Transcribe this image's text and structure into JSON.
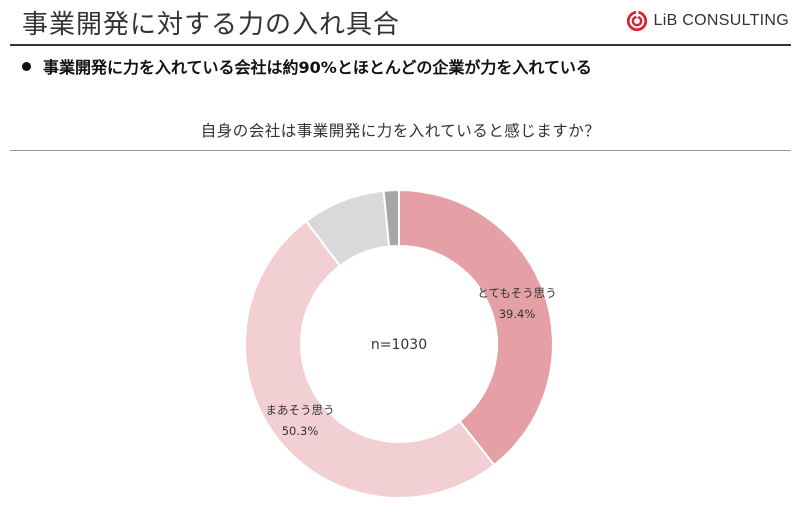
{
  "header": {
    "title": "事業開発に対する力の入れ具合",
    "logo_text": "LiB CONSULTING",
    "logo_color": "#d9232d"
  },
  "summary": {
    "text": "事業開発に力を入れている会社は約90%とほとんどの企業が力を入れている"
  },
  "chart_data": {
    "type": "pie",
    "title": "自身の会社は事業開発に力を入れていると感じますか？",
    "center_label": "n=1030",
    "slices": [
      {
        "name": "とてもそう思う",
        "value": 39.4,
        "label": "39.4%",
        "color": "#e5a0a6",
        "show_label": true
      },
      {
        "name": "まあそう思う",
        "value": 50.3,
        "label": "50.3%",
        "color": "#f2cfd3",
        "show_label": true
      },
      {
        "name": "",
        "value": 8.7,
        "label": "",
        "color": "#d9d9d9",
        "show_label": false
      },
      {
        "name": "",
        "value": 1.6,
        "label": "",
        "color": "#a6a6a6",
        "show_label": false
      }
    ],
    "donut": true,
    "start": "12 o'clock",
    "direction": "clockwise"
  }
}
